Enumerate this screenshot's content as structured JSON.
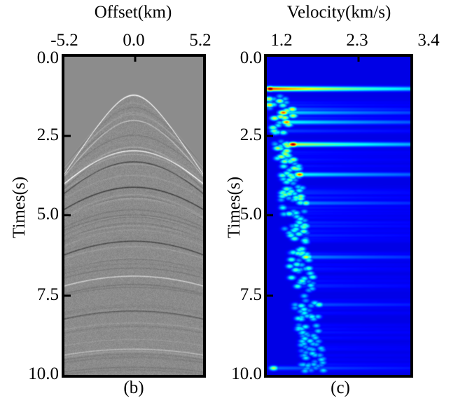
{
  "chart_data": [
    {
      "type": "heatmap",
      "name": "seismic-gather",
      "title": "Offset(km)",
      "xlabel": "Offset(km)",
      "ylabel": "Times(s)",
      "xlim": [
        -5.2,
        5.2
      ],
      "ylim": [
        0.0,
        10.0
      ],
      "x_ticks": [
        "-5.2",
        "0.0",
        "5.2"
      ],
      "x_tick_values": [
        -5.2,
        0.0,
        5.2
      ],
      "y_ticks": [
        "0.0",
        "2.5",
        "5.0",
        "7.5",
        "10.0"
      ],
      "y_tick_values": [
        0.0,
        2.5,
        5.0,
        7.5,
        10.0
      ],
      "colormap": "gray",
      "background_color": "#8c8c8c",
      "hyperbolic_events": [
        {
          "t0": 1.2,
          "velocity": 1.5,
          "amplitude": 1.0
        },
        {
          "t0": 2.0,
          "velocity": 1.65,
          "amplitude": 0.5
        },
        {
          "t0": 2.95,
          "velocity": 1.95,
          "amplitude": 0.9
        },
        {
          "t0": 3.3,
          "velocity": 1.9,
          "amplitude": -0.6
        },
        {
          "t0": 4.1,
          "velocity": 2.1,
          "amplitude": -0.7
        },
        {
          "t0": 5.8,
          "velocity": 2.3,
          "amplitude": -0.6
        },
        {
          "t0": 6.9,
          "velocity": 2.5,
          "amplitude": 0.6
        },
        {
          "t0": 8.0,
          "velocity": 2.6,
          "amplitude": -0.4
        },
        {
          "t0": 9.2,
          "velocity": 2.8,
          "amplitude": 0.4
        }
      ],
      "caption": "(b)"
    },
    {
      "type": "heatmap",
      "name": "velocity-spectrum",
      "title": "Velocity(km/s)",
      "xlabel": "Velocity(km/s)",
      "ylabel": "Times(s)",
      "xlim": [
        1.2,
        3.4
      ],
      "ylim": [
        0.0,
        10.0
      ],
      "x_ticks": [
        "1.2",
        "2.3",
        "3.4"
      ],
      "x_tick_values": [
        1.2,
        2.3,
        3.4
      ],
      "y_ticks": [
        "0.0",
        "2.5",
        "5.0",
        "7.5",
        "10.0"
      ],
      "y_tick_values": [
        0.0,
        2.5,
        5.0,
        7.5,
        10.0
      ],
      "colormap": "jet",
      "background_color": "#00008f",
      "energy_peaks": [
        {
          "time": 1.0,
          "velocity": 1.25,
          "strength": 1.0,
          "streak": 0.85
        },
        {
          "time": 1.75,
          "velocity": 1.45,
          "strength": 0.75,
          "streak": 0.4
        },
        {
          "time": 2.05,
          "velocity": 1.5,
          "strength": 0.7,
          "streak": 0.5
        },
        {
          "time": 2.75,
          "velocity": 1.6,
          "strength": 0.95,
          "streak": 0.6
        },
        {
          "time": 3.7,
          "velocity": 1.7,
          "strength": 0.75,
          "streak": 0.45
        },
        {
          "time": 4.6,
          "velocity": 1.8,
          "strength": 0.45,
          "streak": 0.4
        },
        {
          "time": 6.3,
          "velocity": 1.8,
          "strength": 0.55,
          "streak": 0.35
        },
        {
          "time": 7.8,
          "velocity": 2.0,
          "strength": 0.4,
          "streak": 0.3
        },
        {
          "time": 9.8,
          "velocity": 1.3,
          "strength": 0.5,
          "streak": 0.3
        }
      ],
      "caption": "(c)"
    }
  ]
}
